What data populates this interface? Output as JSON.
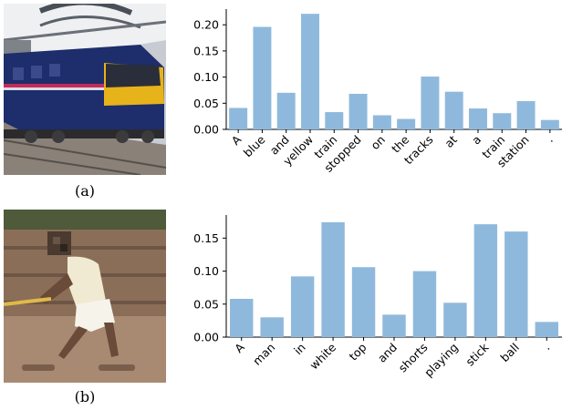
{
  "figure": {
    "panels": [
      {
        "caption": "(a)",
        "photo_subject": "blue and yellow train at a station"
      },
      {
        "caption": "(b)",
        "photo_subject": "man in white top and shorts swinging a stick"
      }
    ]
  },
  "chart_data": [
    {
      "type": "bar",
      "title": "",
      "xlabel": "",
      "ylabel": "",
      "categories": [
        "A",
        "blue",
        "and",
        "yellow",
        "train",
        "stopped",
        "on",
        "the",
        "tracks",
        "at",
        "a",
        "train",
        "station",
        "."
      ],
      "values": [
        0.041,
        0.196,
        0.07,
        0.221,
        0.033,
        0.068,
        0.027,
        0.02,
        0.101,
        0.072,
        0.04,
        0.031,
        0.054,
        0.018
      ],
      "ylim": [
        0,
        0.23
      ],
      "yticks": [
        0.0,
        0.05,
        0.1,
        0.15,
        0.2
      ],
      "ytick_labels": [
        "0.00",
        "0.05",
        "0.10",
        "0.15",
        "0.20"
      ],
      "bar_color": "#8fb9dc",
      "grid": false,
      "legend": "none"
    },
    {
      "type": "bar",
      "title": "",
      "xlabel": "",
      "ylabel": "",
      "categories": [
        "A",
        "man",
        "in",
        "white",
        "top",
        "and",
        "shorts",
        "playing",
        "stick",
        "ball",
        "."
      ],
      "values": [
        0.058,
        0.03,
        0.092,
        0.174,
        0.106,
        0.034,
        0.1,
        0.052,
        0.171,
        0.16,
        0.023
      ],
      "ylim": [
        0,
        0.185
      ],
      "yticks": [
        0.0,
        0.05,
        0.1,
        0.15
      ],
      "ytick_labels": [
        "0.00",
        "0.05",
        "0.10",
        "0.15"
      ],
      "bar_color": "#8fb9dc",
      "grid": false,
      "legend": "none"
    }
  ]
}
